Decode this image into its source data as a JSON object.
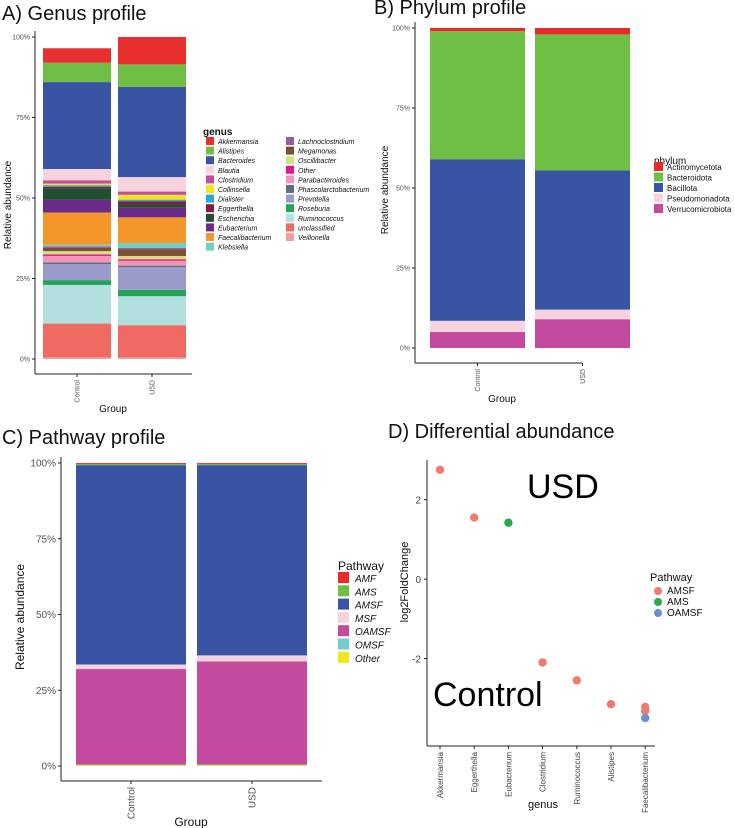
{
  "colors": {
    "Akkermansia": "#e83030",
    "Alistipes": "#6fbf44",
    "Bacteroides": "#3a54a4",
    "Blautia": "#f7d3dd",
    "Clostridium": "#c44a9f",
    "Collinsella": "#f2e51a",
    "Dialister": "#29a8df",
    "Eggerthella": "#8b1a3a",
    "Escherichia": "#214f2f",
    "Eubacterium": "#6a2a8a",
    "Faecalibacterium": "#f5962b",
    "Klebsiella": "#6fd1c2",
    "Lachnoclostridium": "#9a5aa0",
    "Megamonas": "#7a5030",
    "Oscillibacter": "#d4e27e",
    "Other": "#e0198a",
    "Parabacteroides": "#f296b8",
    "Phascolarctobacterium": "#5e6f80",
    "Prevotella": "#9b9bcb",
    "Roseburia": "#23a35a",
    "Ruminococcus": "#b1e0df",
    "unclassified": "#ef6a62",
    "Veillonella": "#f29f9f",
    "Actinomycetota": "#e82a2a",
    "Bacteroidota": "#6fbf44",
    "Bacillota": "#3a54a4",
    "Pseudomonadota": "#f7d3dd",
    "Verrucomicrobiota": "#c44a9f",
    "AMF": "#e82a2a",
    "AMS": "#6fbf44",
    "AMSF": "#3a54a4",
    "MSF": "#f7d3dd",
    "OAMSF": "#c44a9f",
    "OMSF": "#6fcfcf",
    "PathOther": "#f2e51a",
    "dAMSF": "#ef7a6e",
    "dAMS": "#2ca84a",
    "dOAMSF": "#6d8fd0"
  },
  "chart_data": [
    {
      "id": "genus",
      "type": "bar",
      "stacked": true,
      "title": "A) Genus profile",
      "xlabel": "Group",
      "ylabel": "Relative abundance",
      "categories": [
        "Control",
        "USD"
      ],
      "ylim": [
        0,
        1
      ],
      "yticks": [
        "0%",
        "25%",
        "50%",
        "75%",
        "100%"
      ],
      "legend_title": "genus",
      "legend_position": "right",
      "legend": [
        "Akkermansia",
        "Alistipes",
        "Bacteroides",
        "Blautia",
        "Clostridium",
        "Collinsella",
        "Dialister",
        "Eggerthella",
        "Escherichia",
        "Eubacterium",
        "Faecalibacterium",
        "Klebsiella",
        "Lachnoclostridium",
        "Megamonas",
        "Oscillibacter",
        "Other",
        "Parabacteroides",
        "Phascolarctobacterium",
        "Prevotella",
        "Roseburia",
        "Ruminococcus",
        "unclassified",
        "Veillonella"
      ],
      "series": [
        {
          "name": "Veillonella",
          "values": [
            0.005,
            0.005
          ]
        },
        {
          "name": "unclassified",
          "values": [
            0.105,
            0.1
          ]
        },
        {
          "name": "Ruminococcus",
          "values": [
            0.12,
            0.09
          ]
        },
        {
          "name": "Roseburia",
          "values": [
            0.015,
            0.02
          ]
        },
        {
          "name": "Prevotella",
          "values": [
            0.05,
            0.07
          ]
        },
        {
          "name": "Phascolarctobacterium",
          "values": [
            0.005,
            0.005
          ]
        },
        {
          "name": "Parabacteroides",
          "values": [
            0.02,
            0.015
          ]
        },
        {
          "name": "Other",
          "values": [
            0.005,
            0.005
          ]
        },
        {
          "name": "Oscillibacter",
          "values": [
            0.01,
            0.01
          ]
        },
        {
          "name": "Megamonas",
          "values": [
            0.01,
            0.02
          ]
        },
        {
          "name": "Lachnoclostridium",
          "values": [
            0.005,
            0.005
          ]
        },
        {
          "name": "Klebsiella",
          "values": [
            0.005,
            0.015
          ]
        },
        {
          "name": "Faecalibacterium",
          "values": [
            0.1,
            0.08
          ]
        },
        {
          "name": "Eubacterium",
          "values": [
            0.04,
            0.03
          ]
        },
        {
          "name": "Escherichia",
          "values": [
            0.035,
            0.01
          ]
        },
        {
          "name": "Eggerthella",
          "values": [
            0.005,
            0.01
          ]
        },
        {
          "name": "Dialister",
          "values": [
            0.005,
            0.005
          ]
        },
        {
          "name": "Collinsella",
          "values": [
            0.005,
            0.015
          ]
        },
        {
          "name": "Clostridium",
          "values": [
            0.01,
            0.01
          ]
        },
        {
          "name": "Blautia",
          "values": [
            0.035,
            0.045
          ]
        },
        {
          "name": "Bacteroides",
          "values": [
            0.27,
            0.28
          ]
        },
        {
          "name": "Alistipes",
          "values": [
            0.06,
            0.07
          ]
        },
        {
          "name": "Akkermansia",
          "values": [
            0.045,
            0.085
          ]
        }
      ]
    },
    {
      "id": "phylum",
      "type": "bar",
      "stacked": true,
      "title": "B) Phylum profile",
      "xlabel": "Group",
      "ylabel": "Relative abundance",
      "categories": [
        "Control",
        "USD"
      ],
      "ylim": [
        0,
        1
      ],
      "yticks": [
        "0%",
        "25%",
        "50%",
        "75%",
        "100%"
      ],
      "legend_title": "phylum",
      "legend_position": "right",
      "legend": [
        "Actinomycetota",
        "Bacteroidota",
        "Bacillota",
        "Pseudomonadota",
        "Verrucomicrobiota"
      ],
      "series": [
        {
          "name": "Verrucomicrobiota",
          "values": [
            0.05,
            0.09
          ]
        },
        {
          "name": "Pseudomonadota",
          "values": [
            0.035,
            0.03
          ]
        },
        {
          "name": "Bacillota",
          "values": [
            0.505,
            0.435
          ]
        },
        {
          "name": "Bacteroidota",
          "values": [
            0.4,
            0.425
          ]
        },
        {
          "name": "Actinomycetota",
          "values": [
            0.01,
            0.02
          ]
        }
      ]
    },
    {
      "id": "pathway",
      "type": "bar",
      "stacked": true,
      "title": "C) Pathway profile",
      "xlabel": "Group",
      "ylabel": "Relative abundance",
      "categories": [
        "Control",
        "USD"
      ],
      "ylim": [
        0,
        1
      ],
      "yticks": [
        "0%",
        "25%",
        "50%",
        "75%",
        "100%"
      ],
      "legend_title": "Pathway",
      "legend_position": "right",
      "legend": [
        "AMF",
        "AMS",
        "AMSF",
        "MSF",
        "OAMSF",
        "OMSF",
        "Other"
      ],
      "series": [
        {
          "name": "Other",
          "values": [
            0.003,
            0.003
          ]
        },
        {
          "name": "OMSF",
          "values": [
            0.002,
            0.002
          ]
        },
        {
          "name": "OAMSF",
          "values": [
            0.315,
            0.34
          ]
        },
        {
          "name": "MSF",
          "values": [
            0.015,
            0.02
          ]
        },
        {
          "name": "AMSF",
          "values": [
            0.658,
            0.628
          ]
        },
        {
          "name": "AMS",
          "values": [
            0.004,
            0.004
          ]
        },
        {
          "name": "AMF",
          "values": [
            0.003,
            0.003
          ]
        }
      ]
    },
    {
      "id": "diff",
      "type": "scatter",
      "title": "D) Differential abundance",
      "xlabel": "genus",
      "ylabel": "log2FoldChange",
      "categories": [
        "Akkermansia",
        "Eggerthella",
        "Eubacterium",
        "Clostridium",
        "Ruminococcus",
        "Alistipes",
        "Faecalibacterium"
      ],
      "ylim": [
        -3.8,
        3.0
      ],
      "yticks": [
        -2,
        0,
        2
      ],
      "legend_title": "Pathway",
      "legend_position": "right",
      "legend": [
        "AMSF",
        "AMS",
        "OAMSF"
      ],
      "annotations": [
        "USD",
        "Control"
      ],
      "points": [
        {
          "x": "Akkermansia",
          "y": 2.75,
          "pathway": "AMSF"
        },
        {
          "x": "Eggerthella",
          "y": 1.55,
          "pathway": "AMSF"
        },
        {
          "x": "Eubacterium",
          "y": 1.42,
          "pathway": "AMS"
        },
        {
          "x": "Clostridium",
          "y": -2.1,
          "pathway": "AMSF"
        },
        {
          "x": "Ruminococcus",
          "y": -2.55,
          "pathway": "AMSF"
        },
        {
          "x": "Alistipes",
          "y": -3.15,
          "pathway": "AMSF"
        },
        {
          "x": "Faecalibacterium",
          "y": -3.22,
          "pathway": "AMSF"
        },
        {
          "x": "Faecalibacterium",
          "y": -3.32,
          "pathway": "AMSF"
        },
        {
          "x": "Faecalibacterium",
          "y": -3.5,
          "pathway": "OAMSF"
        }
      ]
    }
  ]
}
